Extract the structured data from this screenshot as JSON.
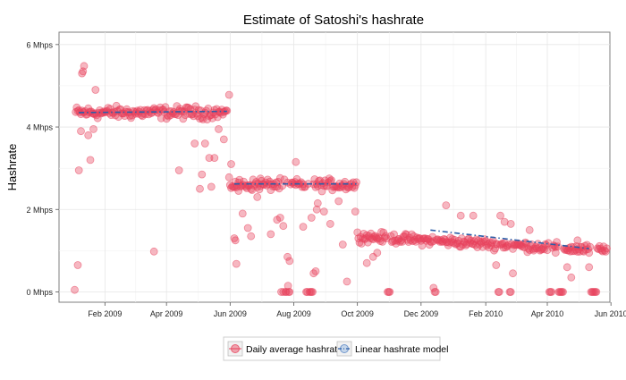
{
  "chart_data": {
    "type": "scatter",
    "title": "Estimate of Satoshi's hashrate",
    "xlabel": "",
    "ylabel": "Hashrate",
    "x_axis": {
      "type": "time",
      "min_day": -13,
      "max_day": 515,
      "ticks": [
        {
          "day": 31,
          "label": "Feb 2009"
        },
        {
          "day": 90,
          "label": "Apr 2009"
        },
        {
          "day": 151,
          "label": "Jun 2009"
        },
        {
          "day": 212,
          "label": "Aug 2009"
        },
        {
          "day": 273,
          "label": "Oct 2009"
        },
        {
          "day": 334,
          "label": "Dec 2009"
        },
        {
          "day": 396,
          "label": "Feb 2010"
        },
        {
          "day": 455,
          "label": "Apr 2010"
        },
        {
          "day": 516,
          "label": "Jun 2010"
        }
      ],
      "note": "day = days since 2009-01-01"
    },
    "y_axis": {
      "min": -0.25,
      "max": 6.3,
      "ticks": [
        {
          "value": 0,
          "label": "0 Mhps"
        },
        {
          "value": 2,
          "label": "2 Mhps"
        },
        {
          "value": 4,
          "label": "4 Mhps"
        },
        {
          "value": 6,
          "label": "6 Mhps"
        }
      ],
      "unit": "Mhps"
    },
    "grid": true,
    "legend": {
      "placement": "bottom",
      "entries": [
        {
          "key": "daily",
          "label": "Daily average hashrate"
        },
        {
          "key": "model",
          "label": "Linear hashrate model"
        }
      ]
    },
    "series": [
      {
        "name": "Daily average hashrate",
        "style": "points",
        "color": "#e8425c",
        "segments": [
          {
            "start_day": 3,
            "end_day": 148,
            "level": 4.35,
            "spread": 0.22,
            "zero_days": [],
            "outliers": [
              {
                "day": 2,
                "value": 0.05
              },
              {
                "day": 5,
                "value": 0.65
              },
              {
                "day": 6,
                "value": 2.95
              },
              {
                "day": 8,
                "value": 3.9
              },
              {
                "day": 9,
                "value": 5.3
              },
              {
                "day": 10,
                "value": 5.35
              },
              {
                "day": 11,
                "value": 5.48
              },
              {
                "day": 15,
                "value": 3.8
              },
              {
                "day": 17,
                "value": 3.2
              },
              {
                "day": 20,
                "value": 3.95
              },
              {
                "day": 22,
                "value": 4.9
              },
              {
                "day": 78,
                "value": 0.98
              },
              {
                "day": 102,
                "value": 2.95
              },
              {
                "day": 117,
                "value": 3.6
              },
              {
                "day": 122,
                "value": 2.5
              },
              {
                "day": 124,
                "value": 2.85
              },
              {
                "day": 127,
                "value": 3.6
              },
              {
                "day": 131,
                "value": 3.25
              },
              {
                "day": 133,
                "value": 2.55
              },
              {
                "day": 136,
                "value": 3.25
              },
              {
                "day": 140,
                "value": 3.95
              },
              {
                "day": 145,
                "value": 3.7
              }
            ]
          },
          {
            "start_day": 150,
            "end_day": 272,
            "level": 2.6,
            "spread": 0.2,
            "zero_days": [
              200,
              202,
              204,
              205,
              207,
              208,
              224,
              225,
              227,
              228,
              229,
              230
            ],
            "outliers": [
              {
                "day": 150,
                "value": 4.78
              },
              {
                "day": 152,
                "value": 3.1
              },
              {
                "day": 155,
                "value": 1.3
              },
              {
                "day": 156,
                "value": 1.25
              },
              {
                "day": 157,
                "value": 0.68
              },
              {
                "day": 159,
                "value": 2.45
              },
              {
                "day": 163,
                "value": 1.9
              },
              {
                "day": 168,
                "value": 1.55
              },
              {
                "day": 171,
                "value": 1.35
              },
              {
                "day": 177,
                "value": 2.3
              },
              {
                "day": 180,
                "value": 2.75
              },
              {
                "day": 190,
                "value": 1.4
              },
              {
                "day": 196,
                "value": 1.75
              },
              {
                "day": 199,
                "value": 1.8
              },
              {
                "day": 202,
                "value": 1.6
              },
              {
                "day": 206,
                "value": 0.85
              },
              {
                "day": 206.5,
                "value": 0.15
              },
              {
                "day": 208,
                "value": 0.75
              },
              {
                "day": 214,
                "value": 3.15
              },
              {
                "day": 221,
                "value": 1.58
              },
              {
                "day": 229,
                "value": 1.8
              },
              {
                "day": 231,
                "value": 0.45
              },
              {
                "day": 233,
                "value": 0.5
              },
              {
                "day": 234,
                "value": 2.0
              },
              {
                "day": 235,
                "value": 2.15
              },
              {
                "day": 241,
                "value": 1.95
              },
              {
                "day": 247,
                "value": 1.65
              },
              {
                "day": 255,
                "value": 2.2
              },
              {
                "day": 259,
                "value": 1.15
              },
              {
                "day": 263,
                "value": 0.25
              },
              {
                "day": 271,
                "value": 1.95
              }
            ]
          },
          {
            "start_day": 273,
            "end_day": 512,
            "level_start": 1.35,
            "level_end": 1.0,
            "spread": 0.18,
            "zero_days": [
              302,
              303,
              304,
              347,
              348,
              408,
              409,
              419,
              420,
              457,
              458,
              459,
              466,
              467,
              468,
              469,
              470,
              497,
              498,
              499,
              500,
              501,
              502
            ],
            "outliers": [
              {
                "day": 282,
                "value": 0.7
              },
              {
                "day": 288,
                "value": 0.85
              },
              {
                "day": 292,
                "value": 0.95
              },
              {
                "day": 346,
                "value": 0.1
              },
              {
                "day": 358,
                "value": 2.1
              },
              {
                "day": 372,
                "value": 1.85
              },
              {
                "day": 384,
                "value": 1.85
              },
              {
                "day": 406,
                "value": 0.65
              },
              {
                "day": 410,
                "value": 1.85
              },
              {
                "day": 414,
                "value": 1.7
              },
              {
                "day": 420,
                "value": 1.65
              },
              {
                "day": 422,
                "value": 0.45
              },
              {
                "day": 438,
                "value": 1.5
              },
              {
                "day": 463,
                "value": 0.95
              },
              {
                "day": 474,
                "value": 0.6
              },
              {
                "day": 478,
                "value": 0.35
              },
              {
                "day": 484,
                "value": 1.25
              },
              {
                "day": 495,
                "value": 0.6
              }
            ]
          }
        ]
      },
      {
        "name": "Linear hashrate model",
        "style": "dash-dot line",
        "color": "#2b5ea8",
        "segments": [
          {
            "x": [
              6,
              148
            ],
            "y": [
              4.35,
              4.38
            ]
          },
          {
            "x": [
              155,
              272
            ],
            "y": [
              2.62,
              2.62
            ]
          },
          {
            "x": [
              343,
              495
            ],
            "y": [
              1.5,
              1.05
            ]
          }
        ]
      }
    ]
  }
}
